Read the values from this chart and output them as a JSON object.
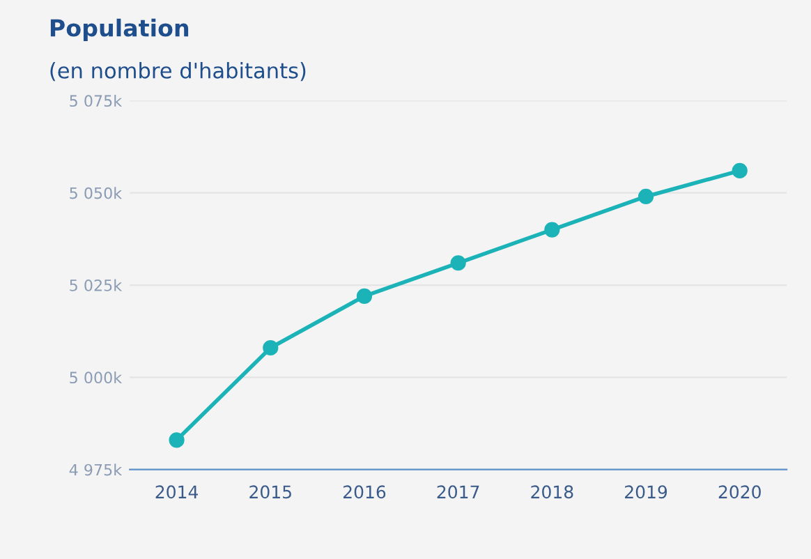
{
  "chart_data": {
    "type": "line",
    "title": "Population",
    "subtitle": "(en nombre d'habitants)",
    "categories": [
      "2014",
      "2015",
      "2016",
      "2017",
      "2018",
      "2019",
      "2020"
    ],
    "series": [
      {
        "color": "#1bb3b8",
        "values": [
          4983,
          5008,
          5022,
          5031,
          5040,
          5049,
          5056
        ]
      }
    ],
    "ylim": [
      4975,
      5075
    ],
    "yticks": [
      {
        "value": 4975,
        "label": "4 975k"
      },
      {
        "value": 5000,
        "label": "5 000k"
      },
      {
        "value": 5025,
        "label": "5 025k"
      },
      {
        "value": 5050,
        "label": "5 050k"
      },
      {
        "value": 5075,
        "label": "5 075k"
      }
    ],
    "grid": "y",
    "marker": "circle",
    "line_style": "solid"
  }
}
